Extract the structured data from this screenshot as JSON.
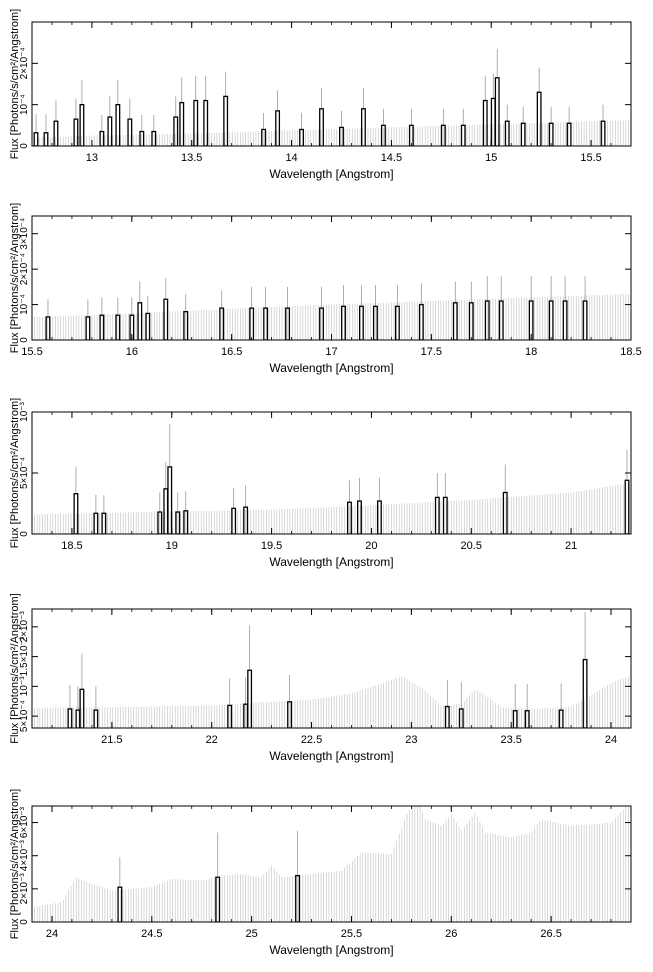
{
  "figure": {
    "background": "#ffffff",
    "data_color": "#000000",
    "model_color": "#c8c8c8"
  },
  "chart_data": [
    {
      "type": "line",
      "xlabel": "Wavelength [Angstrom]",
      "ylabel": "Flux [Photons/s/cm²/Angstrom]",
      "xlim": [
        12.7,
        15.7
      ],
      "ylim": [
        0,
        0.0003
      ],
      "xticks": [
        13,
        13.5,
        14,
        14.5,
        15,
        15.5
      ],
      "xtick_labels": [
        "13",
        "13.5",
        "14",
        "14.5",
        "15",
        "15.5"
      ],
      "yticks": [
        0,
        0.0001,
        0.0002
      ],
      "ytick_labels": [
        "0",
        "10⁻⁴",
        "2×10⁻⁴"
      ],
      "model": {
        "x": [
          12.7,
          13.0,
          13.5,
          14.0,
          14.5,
          15.0,
          15.5,
          15.7
        ],
        "y": [
          2e-05,
          2.5e-05,
          3e-05,
          3.8e-05,
          4.5e-05,
          5.2e-05,
          6e-05,
          6.2e-05
        ]
      },
      "data": [
        {
          "x": 12.72,
          "y": 3.2e-05,
          "err": 4.5e-05
        },
        {
          "x": 12.77,
          "y": 3.2e-05,
          "err": 4.5e-05
        },
        {
          "x": 12.82,
          "y": 6e-05,
          "err": 5e-05
        },
        {
          "x": 12.92,
          "y": 6.5e-05,
          "err": 5e-05
        },
        {
          "x": 12.95,
          "y": 0.0001,
          "err": 6e-05
        },
        {
          "x": 13.05,
          "y": 3.5e-05,
          "err": 4e-05
        },
        {
          "x": 13.09,
          "y": 7e-05,
          "err": 5e-05
        },
        {
          "x": 13.13,
          "y": 0.0001,
          "err": 6e-05
        },
        {
          "x": 13.19,
          "y": 6.5e-05,
          "err": 5e-05
        },
        {
          "x": 13.25,
          "y": 3.5e-05,
          "err": 4e-05
        },
        {
          "x": 13.31,
          "y": 3.5e-05,
          "err": 4e-05
        },
        {
          "x": 13.42,
          "y": 7e-05,
          "err": 5e-05
        },
        {
          "x": 13.45,
          "y": 0.000105,
          "err": 6e-05
        },
        {
          "x": 13.52,
          "y": 0.00011,
          "err": 6e-05
        },
        {
          "x": 13.57,
          "y": 0.00011,
          "err": 6e-05
        },
        {
          "x": 13.67,
          "y": 0.00012,
          "err": 6e-05
        },
        {
          "x": 13.86,
          "y": 4e-05,
          "err": 4e-05
        },
        {
          "x": 13.93,
          "y": 8.5e-05,
          "err": 5e-05
        },
        {
          "x": 14.05,
          "y": 4e-05,
          "err": 4e-05
        },
        {
          "x": 14.15,
          "y": 9e-05,
          "err": 5e-05
        },
        {
          "x": 14.25,
          "y": 4.5e-05,
          "err": 4e-05
        },
        {
          "x": 14.36,
          "y": 9e-05,
          "err": 5e-05
        },
        {
          "x": 14.46,
          "y": 5e-05,
          "err": 4e-05
        },
        {
          "x": 14.6,
          "y": 5e-05,
          "err": 4e-05
        },
        {
          "x": 14.76,
          "y": 5e-05,
          "err": 4e-05
        },
        {
          "x": 14.86,
          "y": 5e-05,
          "err": 4e-05
        },
        {
          "x": 14.97,
          "y": 0.00011,
          "err": 6e-05
        },
        {
          "x": 15.01,
          "y": 0.000115,
          "err": 6e-05
        },
        {
          "x": 15.03,
          "y": 0.000165,
          "err": 7e-05
        },
        {
          "x": 15.08,
          "y": 6e-05,
          "err": 4e-05
        },
        {
          "x": 15.16,
          "y": 5.5e-05,
          "err": 4e-05
        },
        {
          "x": 15.24,
          "y": 0.00013,
          "err": 6e-05
        },
        {
          "x": 15.3,
          "y": 5.5e-05,
          "err": 4e-05
        },
        {
          "x": 15.39,
          "y": 5.5e-05,
          "err": 4e-05
        },
        {
          "x": 15.56,
          "y": 6e-05,
          "err": 4e-05
        }
      ]
    },
    {
      "type": "line",
      "xlabel": "Wavelength [Angstrom]",
      "ylabel": "Flux [Photons/s/cm²/Angstrom]",
      "xlim": [
        15.5,
        18.5
      ],
      "ylim": [
        0,
        0.00035
      ],
      "xticks": [
        15.5,
        16,
        16.5,
        17,
        17.5,
        18,
        18.5
      ],
      "xtick_labels": [
        "15.5",
        "16",
        "16.5",
        "17",
        "17.5",
        "18",
        "18.5"
      ],
      "yticks": [
        0,
        0.0001,
        0.0002,
        0.0003
      ],
      "ytick_labels": [
        "0",
        "10⁻⁴",
        "2×10⁻⁴",
        "3×10⁻⁴"
      ],
      "model": {
        "x": [
          15.5,
          16.0,
          16.5,
          17.0,
          17.5,
          18.0,
          18.5
        ],
        "y": [
          6.5e-05,
          7.5e-05,
          8.8e-05,
          0.0001,
          0.00011,
          0.00012,
          0.00013
        ]
      },
      "data": [
        {
          "x": 15.58,
          "y": 6.5e-05,
          "err": 5e-05
        },
        {
          "x": 15.78,
          "y": 6.5e-05,
          "err": 5e-05
        },
        {
          "x": 15.85,
          "y": 7e-05,
          "err": 5e-05
        },
        {
          "x": 15.93,
          "y": 7e-05,
          "err": 5e-05
        },
        {
          "x": 16.0,
          "y": 7e-05,
          "err": 5e-05
        },
        {
          "x": 16.04,
          "y": 0.000105,
          "err": 6e-05
        },
        {
          "x": 16.08,
          "y": 7.5e-05,
          "err": 5e-05
        },
        {
          "x": 16.17,
          "y": 0.000115,
          "err": 6e-05
        },
        {
          "x": 16.27,
          "y": 8e-05,
          "err": 5e-05
        },
        {
          "x": 16.45,
          "y": 9e-05,
          "err": 5e-05
        },
        {
          "x": 16.6,
          "y": 9e-05,
          "err": 6e-05
        },
        {
          "x": 16.67,
          "y": 9e-05,
          "err": 6e-05
        },
        {
          "x": 16.78,
          "y": 9e-05,
          "err": 6e-05
        },
        {
          "x": 16.95,
          "y": 9e-05,
          "err": 6e-05
        },
        {
          "x": 17.06,
          "y": 9.5e-05,
          "err": 6e-05
        },
        {
          "x": 17.15,
          "y": 9.5e-05,
          "err": 6e-05
        },
        {
          "x": 17.22,
          "y": 9.5e-05,
          "err": 6e-05
        },
        {
          "x": 17.33,
          "y": 9.5e-05,
          "err": 6e-05
        },
        {
          "x": 17.45,
          "y": 0.0001,
          "err": 6e-05
        },
        {
          "x": 17.62,
          "y": 0.000105,
          "err": 6e-05
        },
        {
          "x": 17.7,
          "y": 0.000105,
          "err": 6e-05
        },
        {
          "x": 17.78,
          "y": 0.00011,
          "err": 7e-05
        },
        {
          "x": 17.85,
          "y": 0.00011,
          "err": 7e-05
        },
        {
          "x": 18.0,
          "y": 0.00011,
          "err": 7e-05
        },
        {
          "x": 18.1,
          "y": 0.00011,
          "err": 7e-05
        },
        {
          "x": 18.17,
          "y": 0.00011,
          "err": 7e-05
        },
        {
          "x": 18.27,
          "y": 0.00011,
          "err": 7e-05
        }
      ]
    },
    {
      "type": "line",
      "xlabel": "Wavelength [Angstrom]",
      "ylabel": "Flux [Photons/s/cm²/Angstrom]",
      "xlim": [
        18.3,
        21.3
      ],
      "ylim": [
        0,
        0.001
      ],
      "xticks": [
        18.5,
        19,
        19.5,
        20,
        20.5,
        21
      ],
      "xtick_labels": [
        "18.5",
        "19",
        "19.5",
        "20",
        "20.5",
        "21"
      ],
      "yticks": [
        0,
        0.0005,
        0.001
      ],
      "ytick_labels": [
        "0",
        "5×10⁻⁴",
        "10⁻³"
      ],
      "model": {
        "x": [
          18.3,
          19.0,
          19.5,
          20.0,
          20.5,
          21.0,
          21.3
        ],
        "y": [
          0.00016,
          0.000185,
          0.0002,
          0.000235,
          0.00028,
          0.00034,
          0.00042
        ]
      },
      "data": [
        {
          "x": 18.52,
          "y": 0.00033,
          "err": 0.00022
        },
        {
          "x": 18.62,
          "y": 0.00017,
          "err": 0.00015
        },
        {
          "x": 18.66,
          "y": 0.00017,
          "err": 0.00015
        },
        {
          "x": 18.94,
          "y": 0.00018,
          "err": 0.00016
        },
        {
          "x": 18.97,
          "y": 0.00037,
          "err": 0.00022
        },
        {
          "x": 18.99,
          "y": 0.00055,
          "err": 0.00035
        },
        {
          "x": 19.03,
          "y": 0.00018,
          "err": 0.00016
        },
        {
          "x": 19.07,
          "y": 0.00019,
          "err": 0.00016
        },
        {
          "x": 19.31,
          "y": 0.00021,
          "err": 0.00017
        },
        {
          "x": 19.37,
          "y": 0.00022,
          "err": 0.00018
        },
        {
          "x": 19.89,
          "y": 0.00026,
          "err": 0.00018
        },
        {
          "x": 19.94,
          "y": 0.00027,
          "err": 0.00019
        },
        {
          "x": 20.04,
          "y": 0.00027,
          "err": 0.00019
        },
        {
          "x": 20.33,
          "y": 0.0003,
          "err": 0.0002
        },
        {
          "x": 20.37,
          "y": 0.0003,
          "err": 0.0002
        },
        {
          "x": 20.67,
          "y": 0.00034,
          "err": 0.00023
        },
        {
          "x": 21.28,
          "y": 0.00044,
          "err": 0.00025
        }
      ]
    },
    {
      "type": "line",
      "xlabel": "Wavelength [Angstrom]",
      "ylabel": "Flux [Photons/s/cm²/Angstrom]",
      "xlim": [
        21.1,
        24.1
      ],
      "ylim": [
        0.0003,
        0.0023
      ],
      "xticks": [
        21.5,
        22,
        22.5,
        23,
        23.5,
        24
      ],
      "xtick_labels": [
        "21.5",
        "22",
        "22.5",
        "23",
        "23.5",
        "24"
      ],
      "yticks": [
        0.0005,
        0.001,
        0.0015,
        0.002
      ],
      "ytick_labels": [
        "5×10⁻⁴",
        "10⁻³",
        "1.5×10⁻³",
        "2×10⁻³"
      ],
      "model": {
        "x": [
          21.1,
          21.5,
          22.0,
          22.5,
          22.7,
          22.85,
          22.95,
          23.05,
          23.15,
          23.25,
          23.32,
          23.37,
          23.45,
          23.6,
          23.8,
          23.9,
          24.0,
          24.1
        ],
        "y": [
          0.00064,
          0.00065,
          0.00068,
          0.00078,
          0.00088,
          0.00105,
          0.00117,
          0.00098,
          0.00068,
          0.0007,
          0.00095,
          0.00085,
          0.00065,
          0.00062,
          0.00066,
          0.00085,
          0.00106,
          0.00118
        ]
      },
      "data": [
        {
          "x": 21.29,
          "y": 0.00062,
          "err": 0.0004
        },
        {
          "x": 21.33,
          "y": 0.0006,
          "err": 0.0004
        },
        {
          "x": 21.35,
          "y": 0.00095,
          "err": 0.0006
        },
        {
          "x": 21.42,
          "y": 0.0006,
          "err": 0.0004
        },
        {
          "x": 22.09,
          "y": 0.00068,
          "err": 0.00045
        },
        {
          "x": 22.17,
          "y": 0.0007,
          "err": 0.00045
        },
        {
          "x": 22.19,
          "y": 0.00127,
          "err": 0.00075
        },
        {
          "x": 22.39,
          "y": 0.00074,
          "err": 0.00045
        },
        {
          "x": 23.18,
          "y": 0.00066,
          "err": 0.00045
        },
        {
          "x": 23.25,
          "y": 0.00062,
          "err": 0.00045
        },
        {
          "x": 23.52,
          "y": 0.00059,
          "err": 0.00045
        },
        {
          "x": 23.58,
          "y": 0.00059,
          "err": 0.00045
        },
        {
          "x": 23.75,
          "y": 0.0006,
          "err": 0.00045
        },
        {
          "x": 23.87,
          "y": 0.00145,
          "err": 0.0008
        }
      ]
    },
    {
      "type": "line",
      "xlabel": "Wavelength [Angstrom]",
      "ylabel": "Flux [Photons/s/cm²/Angstrom]",
      "xlim": [
        23.9,
        26.9
      ],
      "ylim": [
        0,
        0.007
      ],
      "xticks": [
        24,
        24.5,
        25,
        25.5,
        26,
        26.5
      ],
      "xtick_labels": [
        "24",
        "24.5",
        "25",
        "25.5",
        "26",
        "26.5"
      ],
      "yticks": [
        0,
        0.002,
        0.004,
        0.006
      ],
      "ytick_labels": [
        "0",
        "2×10⁻³",
        "4×10⁻³",
        "6×10⁻³"
      ],
      "model": {
        "x": [
          23.9,
          24.05,
          24.12,
          24.18,
          24.3,
          24.5,
          24.6,
          24.75,
          24.85,
          24.95,
          25.05,
          25.1,
          25.15,
          25.3,
          25.45,
          25.55,
          25.7,
          25.78,
          25.83,
          25.87,
          25.95,
          26.0,
          26.05,
          26.12,
          26.17,
          26.3,
          26.4,
          26.45,
          26.6,
          26.8,
          26.9
        ],
        "y": [
          0.0009,
          0.0012,
          0.0027,
          0.0024,
          0.0019,
          0.0021,
          0.0026,
          0.0025,
          0.0028,
          0.0029,
          0.0027,
          0.0034,
          0.0027,
          0.0029,
          0.0031,
          0.0042,
          0.0041,
          0.0066,
          0.0074,
          0.0062,
          0.0058,
          0.0065,
          0.0055,
          0.0066,
          0.0054,
          0.0051,
          0.0054,
          0.0062,
          0.0058,
          0.006,
          0.0073
        ]
      },
      "data": [
        {
          "x": 24.34,
          "y": 0.0021,
          "err": 0.0018
        },
        {
          "x": 24.83,
          "y": 0.0027,
          "err": 0.0027
        },
        {
          "x": 25.23,
          "y": 0.0028,
          "err": 0.0027
        }
      ]
    }
  ]
}
